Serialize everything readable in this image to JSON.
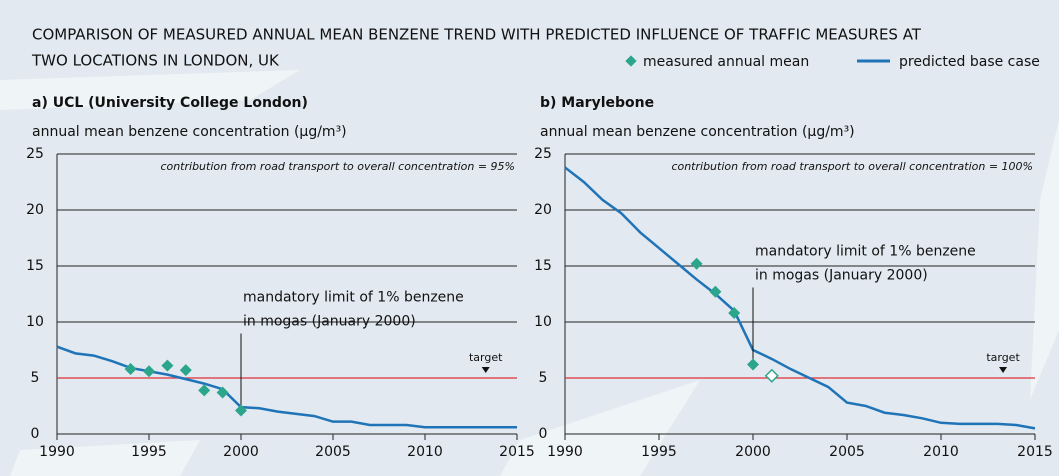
{
  "title": [
    "COMPARISON OF MEASURED ANNUAL MEAN BENZENE TREND WITH PREDICTED INFLUENCE OF TRAFFIC MEASURES AT",
    "TWO LOCATIONS IN LONDON, UK"
  ],
  "chart_data": [
    {
      "type": "line",
      "title": "a) UCL (University College London)",
      "y_label": "annual mean benzene concentration (μg/m³)",
      "annotation": "contribution from road transport to overall concentration = 95%",
      "pointer_text": [
        "mandatory limit of 1% benzene",
        "in mogas (January 2000)"
      ],
      "target": {
        "label": "target",
        "value": 5,
        "x": 2013.3,
        "color": "#e0303a"
      },
      "xlim": [
        1990,
        2015
      ],
      "xticks": [
        1990,
        1995,
        2000,
        2005,
        2010,
        2015
      ],
      "ylim": [
        0,
        25
      ],
      "yticks": [
        0,
        5,
        10,
        15,
        20,
        25
      ],
      "grid": true,
      "series": [
        {
          "name": "predicted base case",
          "color": "#1f74b8",
          "type": "line",
          "x": [
            1990,
            1991,
            1992,
            1993,
            1994,
            1995,
            1996,
            1997,
            1998,
            1999,
            2000,
            2001,
            2002,
            2003,
            2004,
            2005,
            2006,
            2007,
            2008,
            2009,
            2010,
            2015
          ],
          "values": [
            7.8,
            7.2,
            7.0,
            6.5,
            5.9,
            5.6,
            5.3,
            4.9,
            4.5,
            4.0,
            2.4,
            2.3,
            2.0,
            1.8,
            1.6,
            1.1,
            1.1,
            0.8,
            0.8,
            0.8,
            0.6,
            0.6
          ]
        },
        {
          "name": "measured annual mean",
          "color": "#2ba58b",
          "type": "scatter",
          "marker": "diamond",
          "x": [
            1994,
            1995,
            1996,
            1997,
            1998,
            1999,
            2000
          ],
          "values": [
            5.8,
            5.6,
            6.1,
            5.7,
            3.9,
            3.7,
            2.1
          ]
        }
      ]
    },
    {
      "type": "line",
      "title": "b) Marylebone",
      "y_label": "annual mean benzene concentration (μg/m³)",
      "annotation": "contribution from road transport to overall concentration = 100%",
      "pointer_text": [
        "mandatory limit of 1% benzene",
        "in mogas (January 2000)"
      ],
      "target": {
        "label": "target",
        "value": 5,
        "x": 2013.3,
        "color": "#e0303a"
      },
      "xlim": [
        1990,
        2015
      ],
      "xticks": [
        1990,
        1995,
        2000,
        2005,
        2010,
        2015
      ],
      "ylim": [
        0,
        25
      ],
      "yticks": [
        0,
        5,
        10,
        15,
        20,
        25
      ],
      "grid": true,
      "series": [
        {
          "name": "predicted base case",
          "color": "#1f74b8",
          "type": "line",
          "x": [
            1990,
            1991,
            1992,
            1993,
            1994,
            1995,
            1996,
            1997,
            1998,
            1999,
            2000,
            2001,
            2002,
            2003,
            2004,
            2005,
            2006,
            2007,
            2008,
            2009,
            2010,
            2011,
            2013,
            2014,
            2015
          ],
          "values": [
            23.8,
            22.5,
            20.9,
            19.7,
            18.0,
            16.6,
            15.2,
            13.8,
            12.5,
            11.0,
            7.5,
            6.7,
            5.8,
            5.0,
            4.2,
            2.8,
            2.5,
            1.9,
            1.7,
            1.4,
            1.0,
            0.9,
            0.9,
            0.8,
            0.5
          ]
        },
        {
          "name": "measured annual mean",
          "color": "#2ba58b",
          "type": "scatter",
          "marker": "diamond",
          "x": [
            1997,
            1998,
            1999,
            2000
          ],
          "values": [
            15.2,
            12.7,
            10.8,
            6.2
          ]
        },
        {
          "color": "#2ba58b",
          "type": "scatter",
          "marker": "hollow-diamond",
          "x": [
            2001
          ],
          "values": [
            5.2
          ]
        }
      ]
    }
  ]
}
